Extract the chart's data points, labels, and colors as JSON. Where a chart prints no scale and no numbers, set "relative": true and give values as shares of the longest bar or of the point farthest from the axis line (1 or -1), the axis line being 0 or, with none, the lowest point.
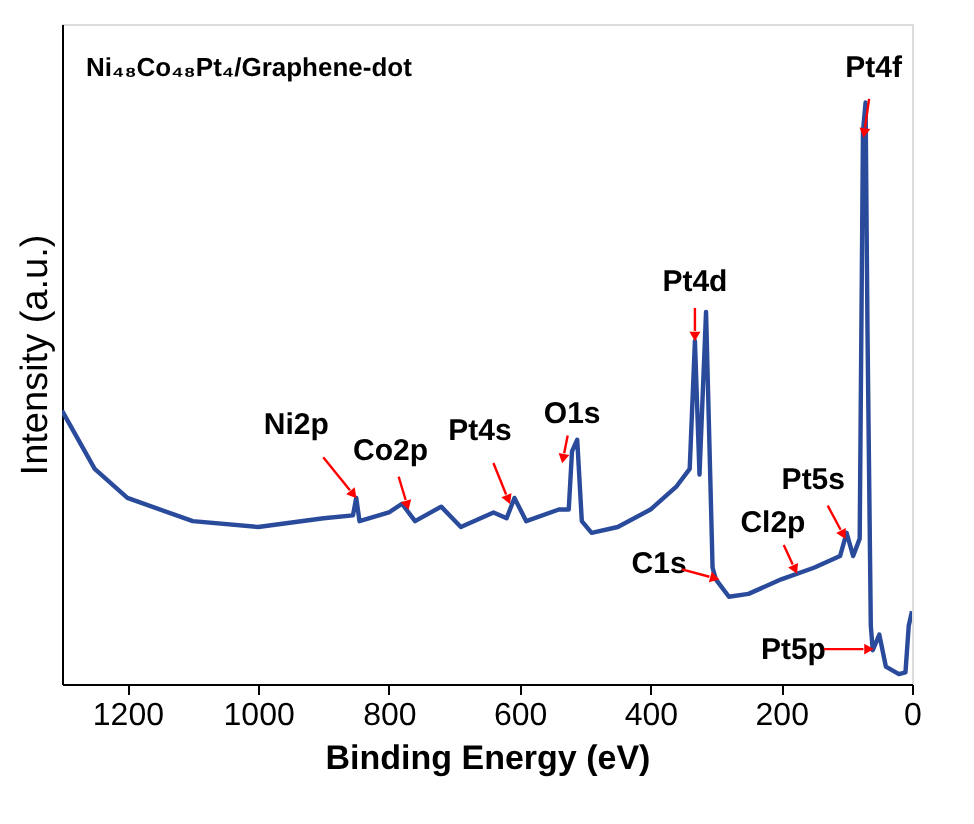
{
  "chart_data": {
    "type": "line",
    "relative": true,
    "title": "Ni₄₈Co₄₈Pt₄/Graphene-dot",
    "xlabel": "Binding Energy (eV)",
    "ylabel": "Intensity (a.u.)",
    "xlim": [
      1300,
      0
    ],
    "xticks": [
      1200,
      1000,
      800,
      600,
      400,
      200,
      0
    ],
    "grid": false,
    "line_style": "solid",
    "series": [
      {
        "color": "#2a4b9b",
        "x": [
          1300,
          1250,
          1200,
          1100,
          1000,
          900,
          855,
          850,
          845,
          800,
          780,
          760,
          720,
          690,
          640,
          620,
          608,
          590,
          540,
          525,
          520,
          512,
          505,
          490,
          450,
          400,
          360,
          340,
          332,
          325,
          315,
          305,
          300,
          280,
          250,
          200,
          150,
          110,
          100,
          90,
          80,
          75,
          71,
          68,
          63,
          60,
          50,
          40,
          20,
          10,
          5,
          0
        ],
        "values": [
          0.47,
          0.37,
          0.32,
          0.28,
          0.27,
          0.285,
          0.29,
          0.32,
          0.28,
          0.295,
          0.31,
          0.28,
          0.305,
          0.27,
          0.295,
          0.285,
          0.32,
          0.28,
          0.3,
          0.3,
          0.4,
          0.42,
          0.28,
          0.26,
          0.27,
          0.3,
          0.34,
          0.37,
          0.59,
          0.36,
          0.64,
          0.2,
          0.18,
          0.15,
          0.155,
          0.18,
          0.2,
          0.22,
          0.26,
          0.22,
          0.25,
          0.95,
          1.0,
          0.6,
          0.1,
          0.058,
          0.085,
          0.03,
          0.017,
          0.02,
          0.1,
          0.125
        ]
      }
    ],
    "annotations": [
      {
        "text": "Ni2p",
        "x": 850,
        "y": 0.32
      },
      {
        "text": "Co2p",
        "x": 770,
        "y": 0.3
      },
      {
        "text": "Pt4s",
        "x": 615,
        "y": 0.31
      },
      {
        "text": "O1s",
        "x": 535,
        "y": 0.38
      },
      {
        "text": "Pt4d",
        "x": 332,
        "y": 0.59
      },
      {
        "text": "Pt4f",
        "x": 74,
        "y": 0.94
      },
      {
        "text": "C1s",
        "x": 295,
        "y": 0.18
      },
      {
        "text": "Cl2p",
        "x": 176,
        "y": 0.19
      },
      {
        "text": "Pt5s",
        "x": 102,
        "y": 0.25
      },
      {
        "text": "Pt5p",
        "x": 59,
        "y": 0.06
      }
    ]
  }
}
